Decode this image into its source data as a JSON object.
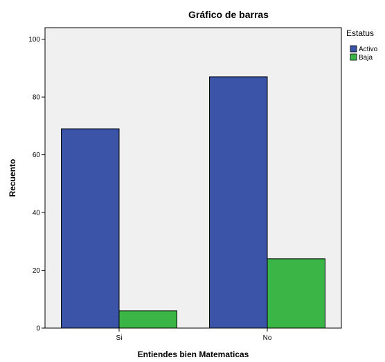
{
  "chart_data": {
    "type": "bar",
    "title": "Gráfico de barras",
    "xlabel": "Entiendes bien Matematicas",
    "ylabel": "Recuento",
    "categories": [
      "Si",
      "No"
    ],
    "series": [
      {
        "name": "Activo",
        "values": [
          69,
          87
        ],
        "color": "#3c54a8"
      },
      {
        "name": "Baja",
        "values": [
          6,
          24
        ],
        "color": "#3cb547"
      }
    ],
    "ylim": [
      0,
      104
    ],
    "yticks": [
      0,
      20,
      40,
      60,
      80,
      100
    ],
    "grid": false,
    "legend": {
      "title": "Estatus",
      "position": "top-right"
    },
    "plot_background": "#f0f0f0"
  }
}
